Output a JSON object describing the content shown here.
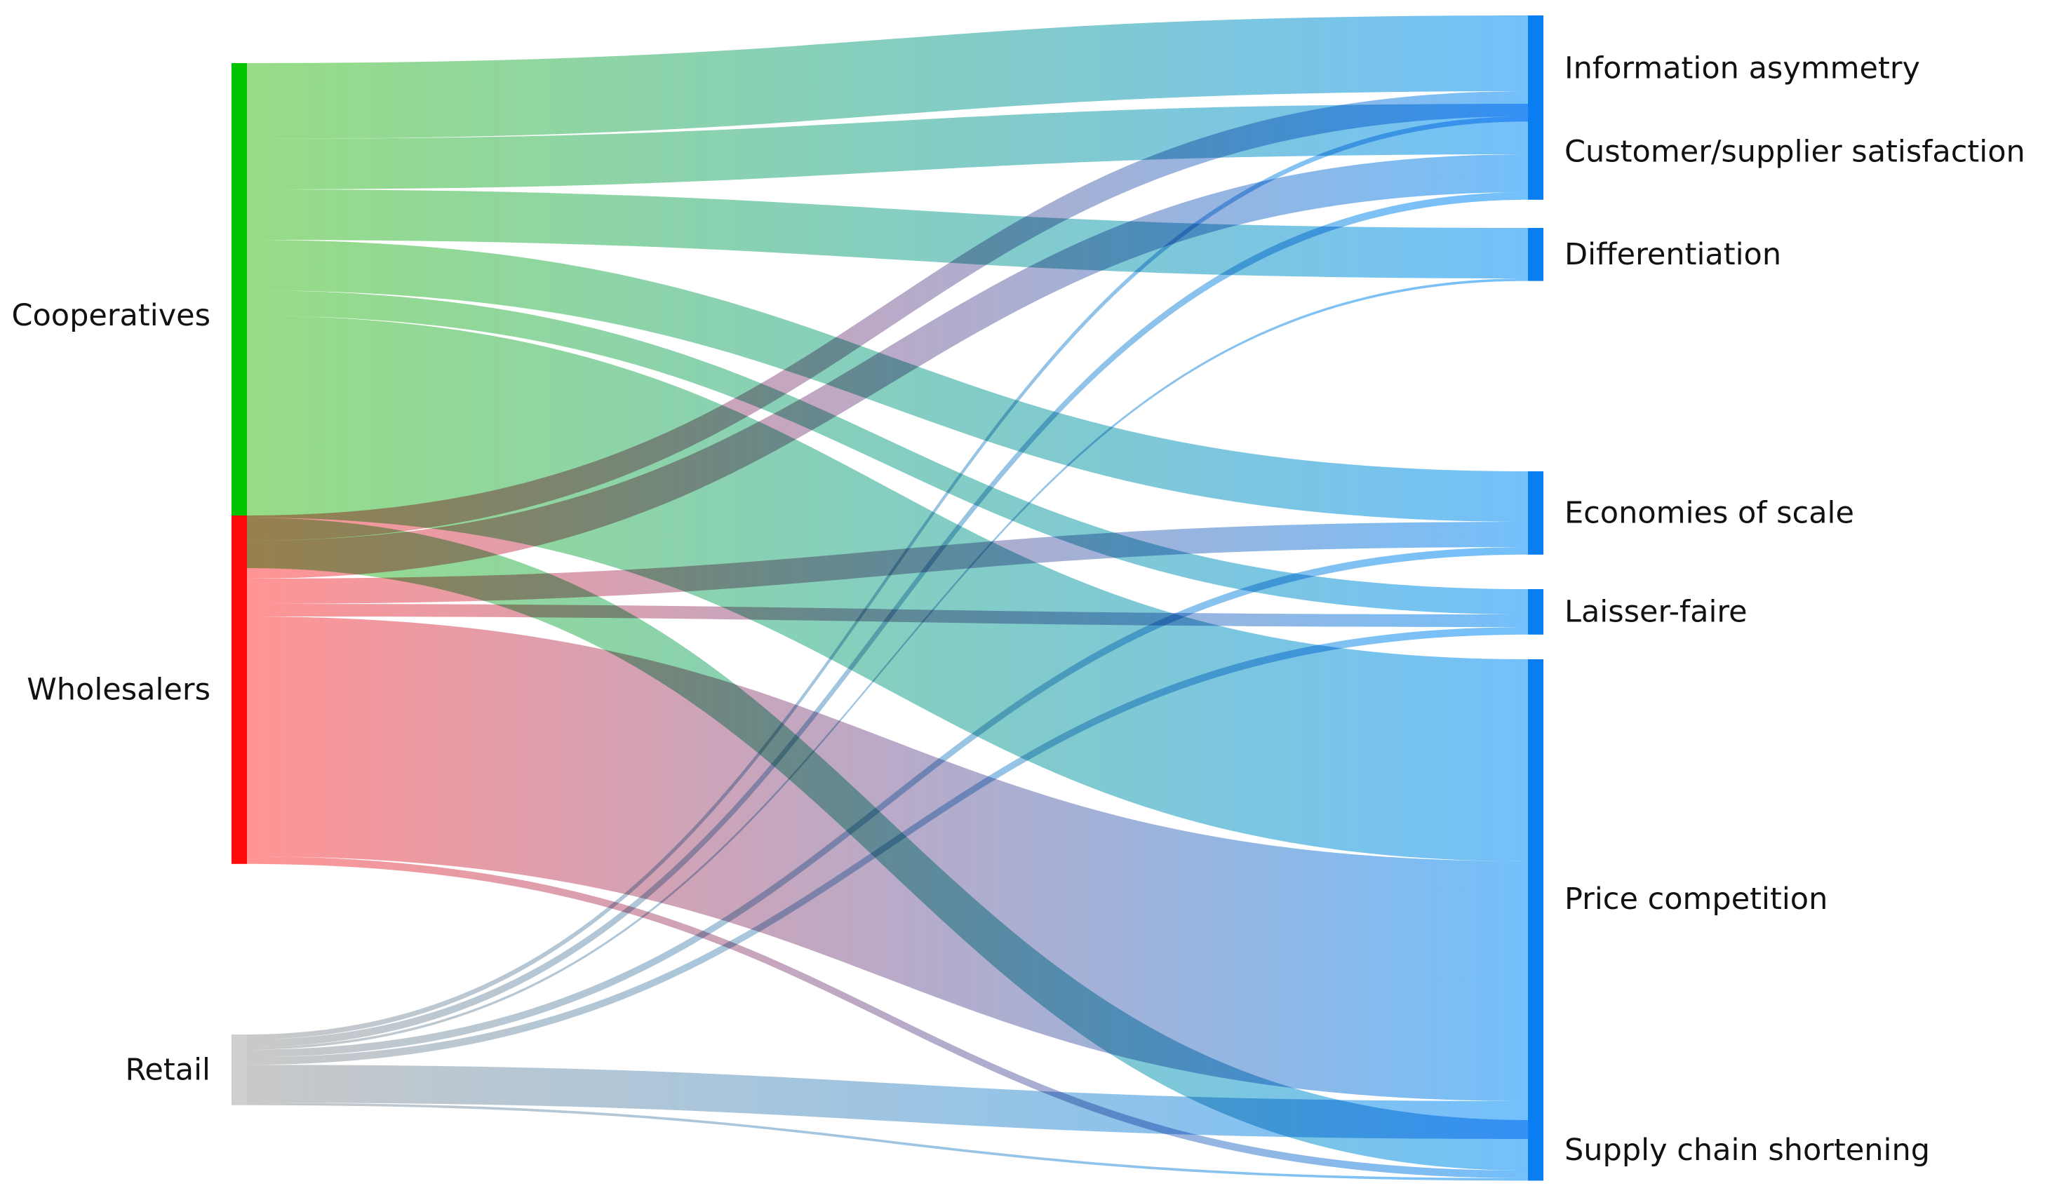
{
  "colors": {
    "cooperatives": "#00c400",
    "wholesalers": "#ff0a0a",
    "retail": "#cfcfcf",
    "target": "#0a7df0",
    "coop_link": "#77d160",
    "whol_link": "#ff7373",
    "retail_link": "#b8b8b8",
    "target_link": "#48acf8"
  },
  "chart_data": {
    "type": "sankey",
    "sources": [
      {
        "id": "coop",
        "label": "Cooperatives",
        "color_key": "cooperatives"
      },
      {
        "id": "whol",
        "label": "Wholesalers",
        "color_key": "wholesalers"
      },
      {
        "id": "ret",
        "label": "Retail",
        "color_key": "retail"
      }
    ],
    "targets": [
      {
        "id": "info",
        "label": "Information asymmetry"
      },
      {
        "id": "cust",
        "label": "Customer/supplier satisfaction"
      },
      {
        "id": "diff",
        "label": "Differentiation"
      },
      {
        "id": "econ",
        "label": "Economies of scale"
      },
      {
        "id": "lais",
        "label": "Laisser-faire"
      },
      {
        "id": "price",
        "label": "Price competition"
      },
      {
        "id": "supply",
        "label": "Supply chain shortening"
      }
    ],
    "links": [
      {
        "source": "coop",
        "target": "info",
        "value": 3
      },
      {
        "source": "coop",
        "target": "cust",
        "value": 2
      },
      {
        "source": "coop",
        "target": "diff",
        "value": 2
      },
      {
        "source": "coop",
        "target": "econ",
        "value": 2
      },
      {
        "source": "coop",
        "target": "lais",
        "value": 1
      },
      {
        "source": "coop",
        "target": "price",
        "value": 8
      },
      {
        "source": "coop",
        "target": "supply",
        "value": 2
      },
      {
        "source": "whol",
        "target": "info",
        "value": 1
      },
      {
        "source": "whol",
        "target": "cust",
        "value": 1.5
      },
      {
        "source": "whol",
        "target": "econ",
        "value": 1
      },
      {
        "source": "whol",
        "target": "lais",
        "value": 0.5
      },
      {
        "source": "whol",
        "target": "price",
        "value": 9.5
      },
      {
        "source": "whol",
        "target": "supply",
        "value": 0.3
      },
      {
        "source": "ret",
        "target": "info",
        "value": 0.2
      },
      {
        "source": "ret",
        "target": "cust",
        "value": 0.3
      },
      {
        "source": "ret",
        "target": "diff",
        "value": 0.1
      },
      {
        "source": "ret",
        "target": "econ",
        "value": 0.3
      },
      {
        "source": "ret",
        "target": "lais",
        "value": 0.3
      },
      {
        "source": "ret",
        "target": "price",
        "value": 1.5
      },
      {
        "source": "ret",
        "target": "supply",
        "value": 0.1
      }
    ]
  }
}
